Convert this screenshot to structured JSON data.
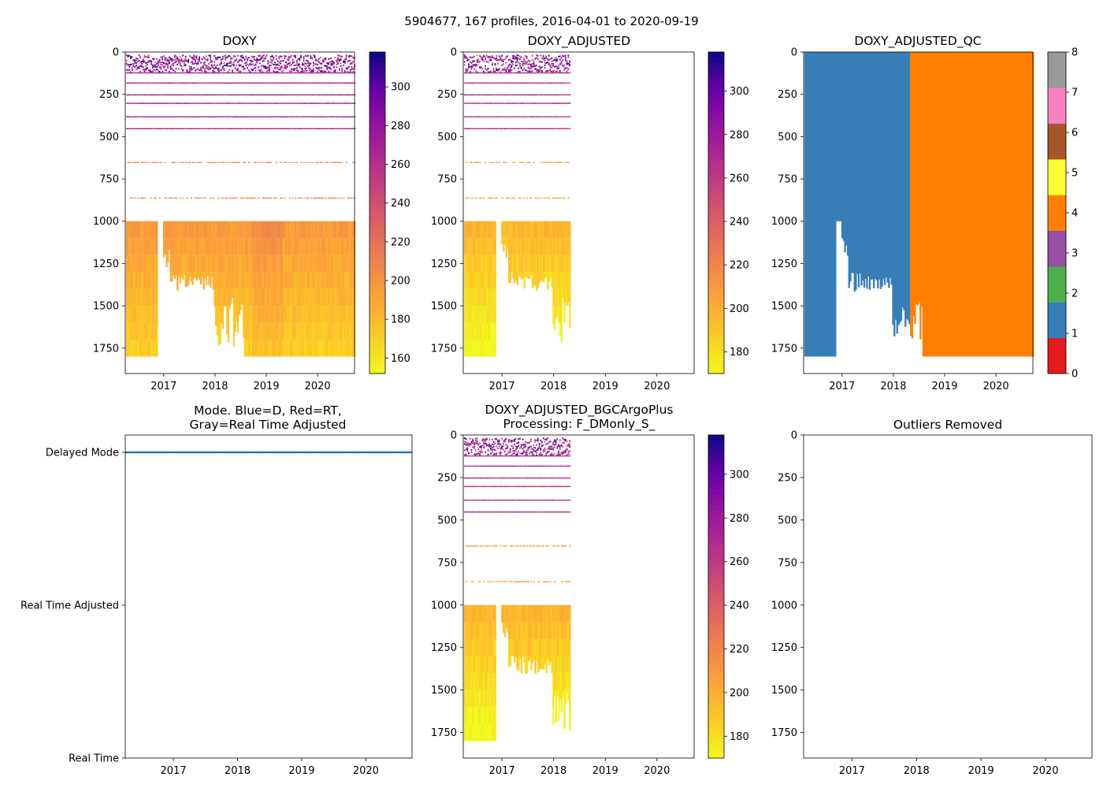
{
  "figure_title": "5904677, 167 profiles, 2016-04-01 to 2020-09-19",
  "chart_data": [
    {
      "id": "doxy",
      "type": "heatmap",
      "title": "DOXY",
      "x_ticks": [
        "2017",
        "2018",
        "2019",
        "2020"
      ],
      "y_ticks": [
        "0",
        "250",
        "500",
        "750",
        "1000",
        "1250",
        "1500",
        "1750"
      ],
      "xlim": [
        2016.25,
        2020.72
      ],
      "ylim": [
        1900,
        0
      ],
      "colormap": "plasma_r",
      "colorbar": {
        "range": [
          152,
          318
        ],
        "ticks": [
          "160",
          "180",
          "200",
          "220",
          "240",
          "260",
          "280",
          "300"
        ]
      },
      "data_end": 2020.72
    },
    {
      "id": "doxy_adjusted",
      "type": "heatmap",
      "title": "DOXY_ADJUSTED",
      "x_ticks": [
        "2017",
        "2018",
        "2019",
        "2020"
      ],
      "y_ticks": [
        "0",
        "250",
        "500",
        "750",
        "1000",
        "1250",
        "1500",
        "1750"
      ],
      "xlim": [
        2016.25,
        2020.72
      ],
      "ylim": [
        1900,
        0
      ],
      "colormap": "plasma_r",
      "colorbar": {
        "range": [
          170,
          318
        ],
        "ticks": [
          "180",
          "200",
          "220",
          "240",
          "260",
          "280",
          "300"
        ]
      },
      "data_end": 2018.3
    },
    {
      "id": "doxy_adjusted_qc",
      "type": "heatmap",
      "title": "DOXY_ADJUSTED_QC",
      "x_ticks": [
        "2017",
        "2018",
        "2019",
        "2020"
      ],
      "y_ticks": [
        "0",
        "250",
        "500",
        "750",
        "1000",
        "1250",
        "1500",
        "1750"
      ],
      "xlim": [
        2016.25,
        2020.72
      ],
      "ylim": [
        1900,
        0
      ],
      "qc_regions": [
        {
          "from": 2016.25,
          "to": 2018.3,
          "qc": 1
        },
        {
          "from": 2018.3,
          "to": 2020.72,
          "qc": 4
        }
      ],
      "colorbar": {
        "range": [
          0,
          8
        ],
        "ticks": [
          "0",
          "1",
          "2",
          "3",
          "4",
          "5",
          "6",
          "7",
          "8"
        ],
        "colors": [
          "#e41a1c",
          "#377eb8",
          "#4daf4a",
          "#984ea3",
          "#ff7f00",
          "#ffff33",
          "#a65628",
          "#f781bf",
          "#999999"
        ]
      }
    },
    {
      "id": "mode",
      "type": "scatter",
      "title_line1": "Mode. Blue=D, Red=RT,",
      "title_line2": "Gray=Real Time Adjusted",
      "x_ticks": [
        "2017",
        "2018",
        "2019",
        "2020"
      ],
      "y_ticks": [
        "Delayed Mode",
        "Real Time Adjusted",
        "Real Time"
      ],
      "xlim": [
        2016.25,
        2020.72
      ],
      "series": [
        {
          "name": "Delayed Mode",
          "level": 2,
          "color": "#1f77b4",
          "count": 167
        }
      ]
    },
    {
      "id": "bgcargoplus",
      "type": "heatmap",
      "title_line1": "DOXY_ADJUSTED_BGCArgoPlus",
      "title_line2": "Processing: F_DMonly_S_",
      "x_ticks": [
        "2017",
        "2018",
        "2019",
        "2020"
      ],
      "y_ticks": [
        "0",
        "250",
        "500",
        "750",
        "1000",
        "1250",
        "1500",
        "1750"
      ],
      "xlim": [
        2016.25,
        2020.72
      ],
      "ylim": [
        1900,
        0
      ],
      "colormap": "plasma_r",
      "colorbar": {
        "range": [
          170,
          318
        ],
        "ticks": [
          "180",
          "200",
          "220",
          "240",
          "260",
          "280",
          "300"
        ]
      },
      "data_end": 2018.3
    },
    {
      "id": "outliers",
      "type": "scatter",
      "title": "Outliers Removed",
      "x_ticks": [
        "2017",
        "2018",
        "2019",
        "2020"
      ],
      "y_ticks": [
        "0",
        "250",
        "500",
        "750",
        "1000",
        "1250",
        "1500",
        "1750"
      ],
      "xlim": [
        2016.25,
        2020.72
      ],
      "ylim": [
        1900,
        0
      ],
      "series": []
    }
  ]
}
